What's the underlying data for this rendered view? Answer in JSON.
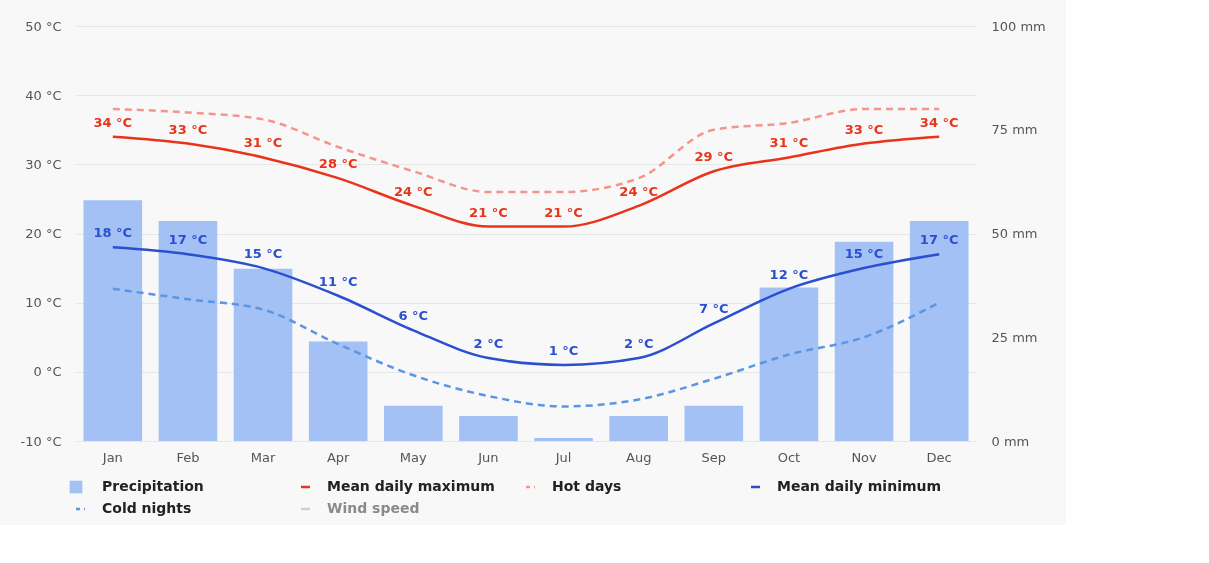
{
  "chart_data": {
    "type": "bar",
    "categories": [
      "Jan",
      "Feb",
      "Mar",
      "Apr",
      "May",
      "Jun",
      "Jul",
      "Aug",
      "Sep",
      "Oct",
      "Nov",
      "Dec"
    ],
    "series": [
      {
        "name": "Precipitation",
        "axis": "y2",
        "color": "#a3c1f5",
        "values": [
          58,
          53,
          41.5,
          24,
          8.5,
          6,
          0.7,
          6,
          8.5,
          37,
          48,
          53
        ]
      },
      {
        "name": "Mean daily maximum",
        "type": "line",
        "color": "#e8341b",
        "line_style": "solid",
        "values": [
          34,
          33,
          31,
          28,
          24,
          21,
          21,
          24,
          29,
          31,
          33,
          34
        ],
        "value_labels": [
          "34 °C",
          "33 °C",
          "31 °C",
          "28 °C",
          "24 °C",
          "21 °C",
          "21 °C",
          "24 °C",
          "29 °C",
          "31 °C",
          "33 °C",
          "34 °C"
        ]
      },
      {
        "name": "Hot days",
        "type": "line",
        "color": "#f4958c",
        "line_style": "dashed",
        "values": [
          38,
          37.5,
          36.5,
          32.5,
          29,
          26,
          26,
          28,
          35,
          36,
          38,
          38
        ]
      },
      {
        "name": "Mean daily minimum",
        "type": "line",
        "color": "#2a4fcf",
        "line_style": "solid",
        "values": [
          18,
          17,
          15,
          11,
          6,
          2,
          1,
          2,
          7,
          12,
          15,
          17
        ],
        "value_labels": [
          "18 °C",
          "17 °C",
          "15 °C",
          "11 °C",
          "6 °C",
          "2 °C",
          "1 °C",
          "2 °C",
          "7 °C",
          "12 °C",
          "15 °C",
          "17 °C"
        ]
      },
      {
        "name": "Cold nights",
        "type": "line",
        "color": "#5b96e2",
        "line_style": "dashed",
        "values": [
          12,
          10.5,
          9,
          4,
          -0.5,
          -3.5,
          -5,
          -4,
          -1,
          2.5,
          5,
          10
        ]
      },
      {
        "name": "Wind speed",
        "type": "line",
        "color": "#d0d0d0",
        "line_style": "solid",
        "values": [
          null,
          null,
          null,
          null,
          null,
          null,
          null,
          null,
          null,
          null,
          null,
          null
        ]
      }
    ],
    "ylim": [
      -10,
      50
    ],
    "yticks": [
      {
        "value": -10,
        "label": "-10 °C"
      },
      {
        "value": 0,
        "label": "0 °C"
      },
      {
        "value": 10,
        "label": "10 °C"
      },
      {
        "value": 20,
        "label": "20 °C"
      },
      {
        "value": 30,
        "label": "30 °C"
      },
      {
        "value": 40,
        "label": "40 °C"
      },
      {
        "value": 50,
        "label": "50 °C"
      }
    ],
    "y2lim": [
      0,
      100
    ],
    "y2ticks": [
      {
        "value": 0,
        "label": "0 mm"
      },
      {
        "value": 25,
        "label": "25 mm"
      },
      {
        "value": 50,
        "label": "50 mm"
      },
      {
        "value": 75,
        "label": "75 mm"
      },
      {
        "value": 100,
        "label": "100 mm"
      }
    ],
    "grid": "y",
    "legend": "bottom"
  }
}
